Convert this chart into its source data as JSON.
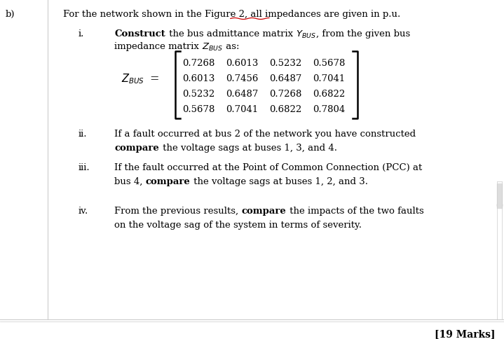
{
  "white_color": "#ffffff",
  "text_color": "#000000",
  "gray_color": "#888888",
  "red_color": "#cc0000",
  "light_gray": "#cccccc",
  "part_label": "b)",
  "matrix": [
    [
      0.7268,
      0.6013,
      0.5232,
      0.5678
    ],
    [
      0.6013,
      0.7456,
      0.6487,
      0.7041
    ],
    [
      0.5232,
      0.6487,
      0.7268,
      0.6822
    ],
    [
      0.5678,
      0.7041,
      0.6822,
      0.7804
    ]
  ],
  "marks": "[19 Marks]",
  "font_size": 9.5,
  "label_font_size": 9.5
}
